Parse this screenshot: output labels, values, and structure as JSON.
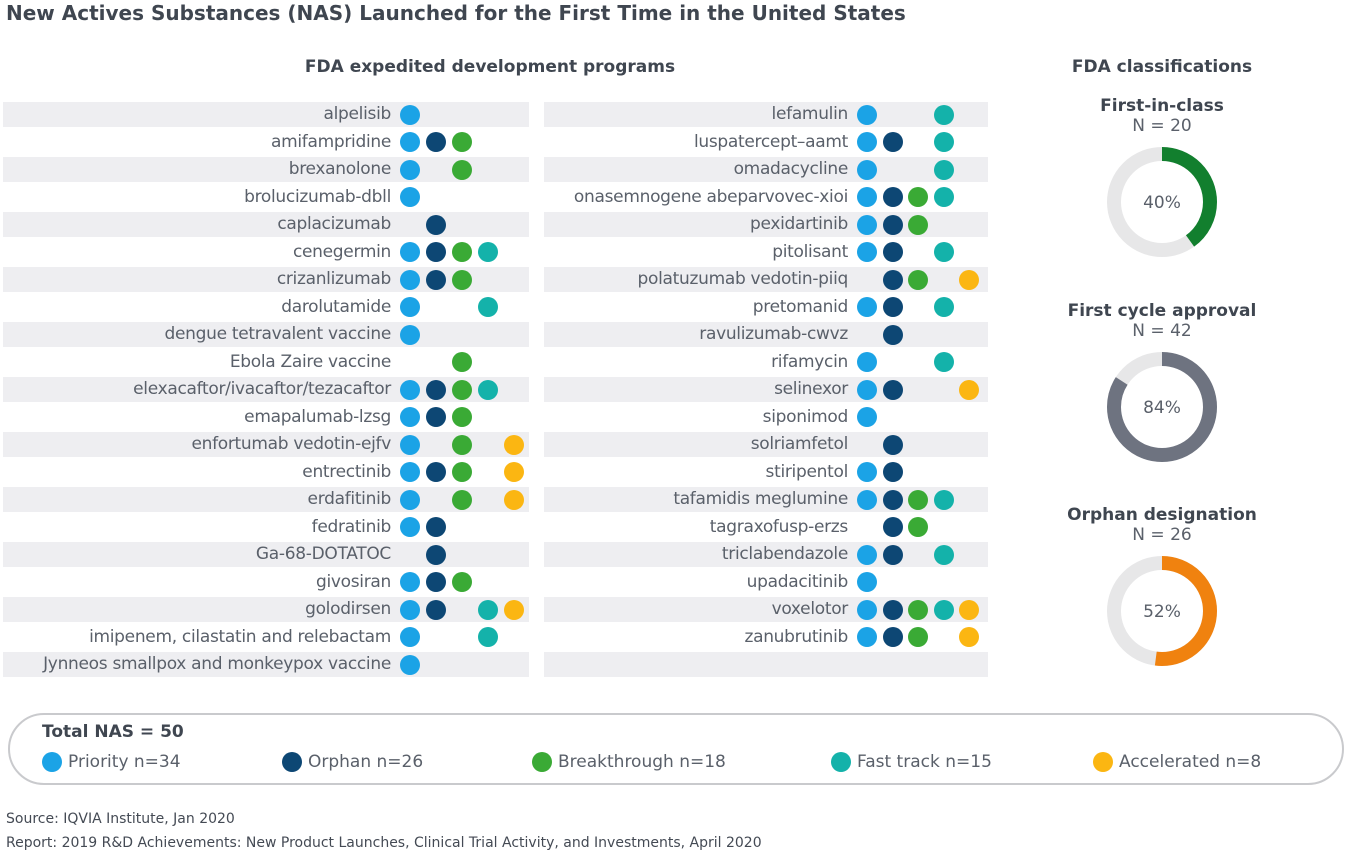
{
  "title": "New Actives Substances (NAS) Launched for the First Time in the United States",
  "programs_title": "FDA expedited development programs",
  "classifications_title": "FDA classifications",
  "colors": {
    "priority": "#1ba3e6",
    "orphan": "#0d4774",
    "breakthrough": "#3aaa35",
    "fasttrack": "#14b2aa",
    "accelerated": "#fbb612",
    "donut_bg": "#e7e7e8"
  },
  "chart_data": {
    "type": "table",
    "programs": [
      "priority",
      "orphan",
      "breakthrough",
      "fasttrack",
      "accelerated"
    ],
    "columns": [
      {
        "rows": [
          {
            "name": "alpelisib",
            "programs": [
              "priority"
            ]
          },
          {
            "name": "amifampridine",
            "programs": [
              "priority",
              "orphan",
              "breakthrough"
            ]
          },
          {
            "name": "brexanolone",
            "programs": [
              "priority",
              "breakthrough"
            ]
          },
          {
            "name": "brolucizumab-dbll",
            "programs": [
              "priority"
            ]
          },
          {
            "name": "caplacizumab",
            "programs": [
              "orphan"
            ]
          },
          {
            "name": "cenegermin",
            "programs": [
              "priority",
              "orphan",
              "breakthrough",
              "fasttrack"
            ]
          },
          {
            "name": "crizanlizumab",
            "programs": [
              "priority",
              "orphan",
              "breakthrough"
            ]
          },
          {
            "name": "darolutamide",
            "programs": [
              "priority",
              "fasttrack"
            ]
          },
          {
            "name": "dengue tetravalent vaccine",
            "programs": [
              "priority"
            ]
          },
          {
            "name": "Ebola Zaire vaccine",
            "programs": [
              "breakthrough"
            ]
          },
          {
            "name": "elexacaftor/ivacaftor/tezacaftor",
            "programs": [
              "priority",
              "orphan",
              "breakthrough",
              "fasttrack"
            ]
          },
          {
            "name": "emapalumab-lzsg",
            "programs": [
              "priority",
              "orphan",
              "breakthrough"
            ]
          },
          {
            "name": "enfortumab vedotin-ejfv",
            "programs": [
              "priority",
              "breakthrough",
              "accelerated"
            ]
          },
          {
            "name": "entrectinib",
            "programs": [
              "priority",
              "orphan",
              "breakthrough",
              "accelerated"
            ]
          },
          {
            "name": "erdafitinib",
            "programs": [
              "priority",
              "breakthrough",
              "accelerated"
            ]
          },
          {
            "name": "fedratinib",
            "programs": [
              "priority",
              "orphan"
            ]
          },
          {
            "name": "Ga-68-DOTATOC",
            "programs": [
              "orphan"
            ]
          },
          {
            "name": "givosiran",
            "programs": [
              "priority",
              "orphan",
              "breakthrough"
            ]
          },
          {
            "name": "golodirsen",
            "programs": [
              "priority",
              "orphan",
              "fasttrack",
              "accelerated"
            ]
          },
          {
            "name": "imipenem, cilastatin and relebactam",
            "programs": [
              "priority",
              "fasttrack"
            ]
          },
          {
            "name": "Jynneos smallpox and monkeypox vaccine",
            "programs": [
              "priority"
            ]
          }
        ]
      },
      {
        "rows": [
          {
            "name": "lefamulin",
            "programs": [
              "priority",
              "fasttrack"
            ]
          },
          {
            "name": "luspatercept–aamt",
            "programs": [
              "priority",
              "orphan",
              "fasttrack"
            ]
          },
          {
            "name": "omadacycline",
            "programs": [
              "priority",
              "fasttrack"
            ]
          },
          {
            "name": "onasemnogene abeparvovec-xioi",
            "programs": [
              "priority",
              "orphan",
              "breakthrough",
              "fasttrack"
            ]
          },
          {
            "name": "pexidartinib",
            "programs": [
              "priority",
              "orphan",
              "breakthrough"
            ]
          },
          {
            "name": "pitolisant",
            "programs": [
              "priority",
              "orphan",
              "fasttrack"
            ]
          },
          {
            "name": "polatuzumab vedotin-piiq",
            "programs": [
              "orphan",
              "breakthrough",
              "accelerated"
            ]
          },
          {
            "name": "pretomanid",
            "programs": [
              "priority",
              "orphan",
              "fasttrack"
            ]
          },
          {
            "name": "ravulizumab-cwvz",
            "programs": [
              "orphan"
            ]
          },
          {
            "name": "rifamycin",
            "programs": [
              "priority",
              "fasttrack"
            ]
          },
          {
            "name": "selinexor",
            "programs": [
              "priority",
              "orphan",
              "accelerated"
            ]
          },
          {
            "name": "siponimod",
            "programs": [
              "priority"
            ]
          },
          {
            "name": "solriamfetol",
            "programs": [
              "orphan"
            ]
          },
          {
            "name": "stiripentol",
            "programs": [
              "priority",
              "orphan"
            ]
          },
          {
            "name": "tafamidis meglumine",
            "programs": [
              "priority",
              "orphan",
              "breakthrough",
              "fasttrack"
            ]
          },
          {
            "name": "tagraxofusp-erzs",
            "programs": [
              "orphan",
              "breakthrough"
            ]
          },
          {
            "name": "triclabendazole",
            "programs": [
              "priority",
              "orphan",
              "fasttrack"
            ]
          },
          {
            "name": "upadacitinib",
            "programs": [
              "priority"
            ]
          },
          {
            "name": "voxelotor",
            "programs": [
              "priority",
              "orphan",
              "breakthrough",
              "fasttrack",
              "accelerated"
            ]
          },
          {
            "name": "zanubrutinib",
            "programs": [
              "priority",
              "orphan",
              "breakthrough",
              "accelerated"
            ]
          },
          {
            "name": "",
            "programs": []
          }
        ]
      }
    ],
    "classifications": [
      {
        "title": "First-in-class",
        "n_label": "N = 20",
        "percent": 40,
        "percent_label": "40%",
        "color": "#127f2e"
      },
      {
        "title": "First cycle approval",
        "n_label": "N = 42",
        "percent": 84,
        "percent_label": "84%",
        "color": "#6e7380"
      },
      {
        "title": "Orphan designation",
        "n_label": "N = 26",
        "percent": 52,
        "percent_label": "52%",
        "color": "#f0820f"
      }
    ]
  },
  "legend": {
    "total": "Total NAS = 50",
    "items": [
      {
        "key": "priority",
        "label": "Priority  n=34"
      },
      {
        "key": "orphan",
        "label": "Orphan  n=26"
      },
      {
        "key": "breakthrough",
        "label": "Breakthrough  n=18"
      },
      {
        "key": "fasttrack",
        "label": "Fast track  n=15"
      },
      {
        "key": "accelerated",
        "label": "Accelerated  n=8"
      }
    ]
  },
  "footer": {
    "source": "Source: IQVIA Institute, Jan 2020",
    "report": "Report: 2019 R&D Achievements: New Product Launches, Clinical Trial Activity, and Investments, April 2020"
  }
}
